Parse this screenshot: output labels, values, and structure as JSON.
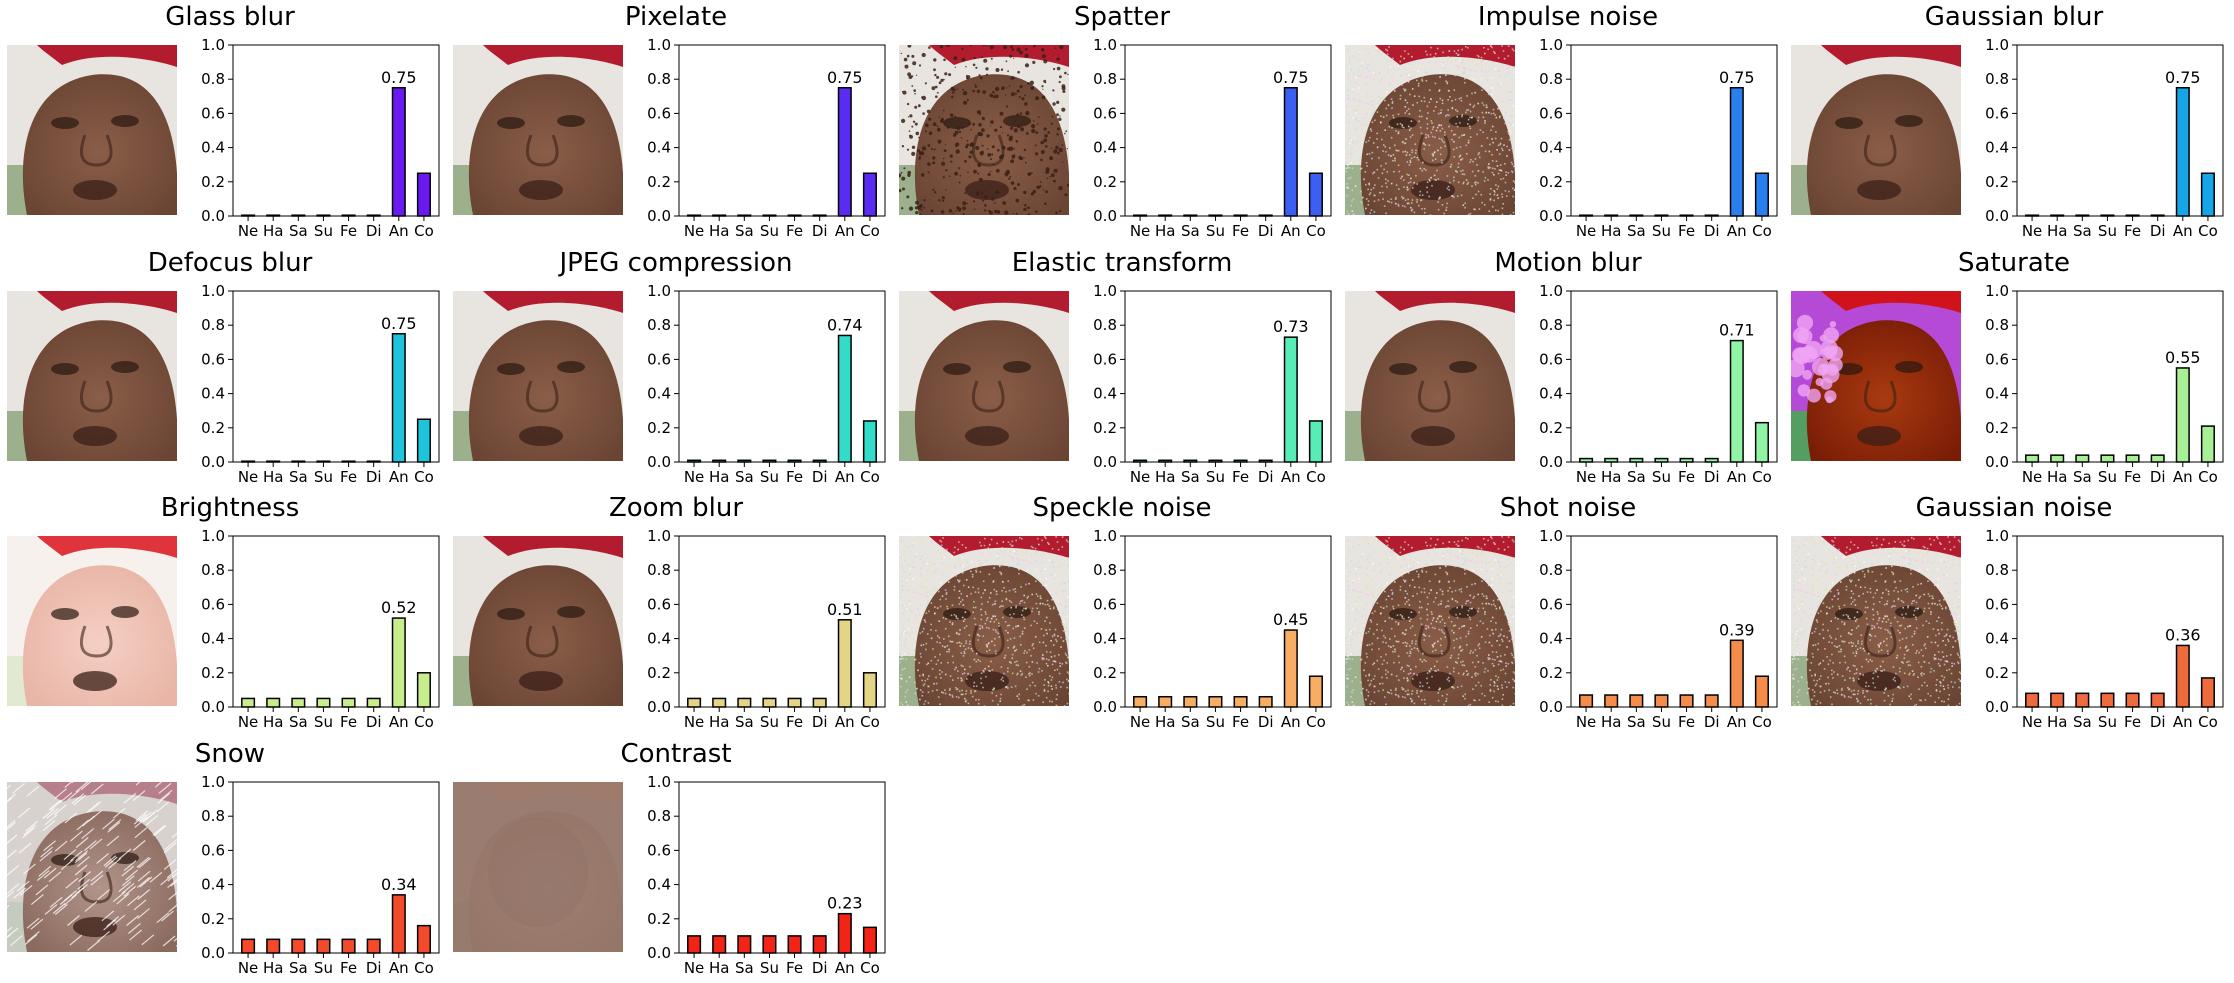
{
  "figure": {
    "category_labels": [
      "Ne",
      "Ha",
      "Sa",
      "Su",
      "Fe",
      "Di",
      "An",
      "Co"
    ],
    "y_ticks": [
      "0.0",
      "0.2",
      "0.4",
      "0.6",
      "0.8",
      "1.0"
    ],
    "ylim": [
      0,
      1.0
    ]
  },
  "chart_data": [
    {
      "type": "bar",
      "title": "Glass blur",
      "categories": [
        "Ne",
        "Ha",
        "Sa",
        "Su",
        "Fe",
        "Di",
        "An",
        "Co"
      ],
      "values": [
        0.0,
        0.0,
        0.0,
        0.0,
        0.0,
        0.0,
        0.75,
        0.25
      ],
      "annotation": "0.75",
      "color": "#6a1af0",
      "image": "red-cap-face-clean",
      "ylim": [
        0,
        1.0
      ]
    },
    {
      "type": "bar",
      "title": "Pixelate",
      "categories": [
        "Ne",
        "Ha",
        "Sa",
        "Su",
        "Fe",
        "Di",
        "An",
        "Co"
      ],
      "values": [
        0.0,
        0.0,
        0.0,
        0.0,
        0.0,
        0.0,
        0.75,
        0.25
      ],
      "annotation": "0.75",
      "color": "#5a2cf2",
      "image": "red-cap-face-clean",
      "ylim": [
        0,
        1.0
      ]
    },
    {
      "type": "bar",
      "title": "Spatter",
      "categories": [
        "Ne",
        "Ha",
        "Sa",
        "Su",
        "Fe",
        "Di",
        "An",
        "Co"
      ],
      "values": [
        0.0,
        0.0,
        0.0,
        0.0,
        0.0,
        0.0,
        0.75,
        0.25
      ],
      "annotation": "0.75",
      "color": "#3b5ff2",
      "image": "red-cap-face-spatter",
      "ylim": [
        0,
        1.0
      ]
    },
    {
      "type": "bar",
      "title": "Impulse noise",
      "categories": [
        "Ne",
        "Ha",
        "Sa",
        "Su",
        "Fe",
        "Di",
        "An",
        "Co"
      ],
      "values": [
        0.0,
        0.0,
        0.0,
        0.0,
        0.0,
        0.0,
        0.75,
        0.25
      ],
      "annotation": "0.75",
      "color": "#2a7fef",
      "image": "red-cap-face-noisy",
      "ylim": [
        0,
        1.0
      ]
    },
    {
      "type": "bar",
      "title": "Gaussian blur",
      "categories": [
        "Ne",
        "Ha",
        "Sa",
        "Su",
        "Fe",
        "Di",
        "An",
        "Co"
      ],
      "values": [
        0.0,
        0.0,
        0.0,
        0.0,
        0.0,
        0.0,
        0.75,
        0.25
      ],
      "annotation": "0.75",
      "color": "#16a5e6",
      "image": "red-cap-face-clean",
      "ylim": [
        0,
        1.0
      ]
    },
    {
      "type": "bar",
      "title": "Defocus blur",
      "categories": [
        "Ne",
        "Ha",
        "Sa",
        "Su",
        "Fe",
        "Di",
        "An",
        "Co"
      ],
      "values": [
        0.0,
        0.0,
        0.0,
        0.0,
        0.0,
        0.0,
        0.75,
        0.25
      ],
      "annotation": "0.75",
      "color": "#1ec4dc",
      "image": "red-cap-face-clean",
      "ylim": [
        0,
        1.0
      ]
    },
    {
      "type": "bar",
      "title": "JPEG compression",
      "categories": [
        "Ne",
        "Ha",
        "Sa",
        "Su",
        "Fe",
        "Di",
        "An",
        "Co"
      ],
      "values": [
        0.01,
        0.01,
        0.01,
        0.01,
        0.01,
        0.01,
        0.74,
        0.24
      ],
      "annotation": "0.74",
      "color": "#33dcc9",
      "image": "red-cap-face-clean",
      "ylim": [
        0,
        1.0
      ]
    },
    {
      "type": "bar",
      "title": "Elastic transform",
      "categories": [
        "Ne",
        "Ha",
        "Sa",
        "Su",
        "Fe",
        "Di",
        "An",
        "Co"
      ],
      "values": [
        0.01,
        0.01,
        0.01,
        0.01,
        0.01,
        0.01,
        0.73,
        0.24
      ],
      "annotation": "0.73",
      "color": "#58edb6",
      "image": "red-cap-face-clean",
      "ylim": [
        0,
        1.0
      ]
    },
    {
      "type": "bar",
      "title": "Motion blur",
      "categories": [
        "Ne",
        "Ha",
        "Sa",
        "Su",
        "Fe",
        "Di",
        "An",
        "Co"
      ],
      "values": [
        0.02,
        0.02,
        0.02,
        0.02,
        0.02,
        0.02,
        0.71,
        0.23
      ],
      "annotation": "0.71",
      "color": "#8ff5a5",
      "image": "red-cap-face-clean",
      "ylim": [
        0,
        1.0
      ]
    },
    {
      "type": "bar",
      "title": "Saturate",
      "categories": [
        "Ne",
        "Ha",
        "Sa",
        "Su",
        "Fe",
        "Di",
        "An",
        "Co"
      ],
      "values": [
        0.04,
        0.04,
        0.04,
        0.04,
        0.04,
        0.04,
        0.55,
        0.21
      ],
      "annotation": "0.55",
      "color": "#a7f095",
      "image": "red-cap-face-saturated",
      "ylim": [
        0,
        1.0
      ]
    },
    {
      "type": "bar",
      "title": "Brightness",
      "categories": [
        "Ne",
        "Ha",
        "Sa",
        "Su",
        "Fe",
        "Di",
        "An",
        "Co"
      ],
      "values": [
        0.05,
        0.05,
        0.05,
        0.05,
        0.05,
        0.05,
        0.52,
        0.2
      ],
      "annotation": "0.52",
      "color": "#c8ed8c",
      "image": "red-cap-face-bright",
      "ylim": [
        0,
        1.0
      ]
    },
    {
      "type": "bar",
      "title": "Zoom blur",
      "categories": [
        "Ne",
        "Ha",
        "Sa",
        "Su",
        "Fe",
        "Di",
        "An",
        "Co"
      ],
      "values": [
        0.05,
        0.05,
        0.05,
        0.05,
        0.05,
        0.05,
        0.51,
        0.2
      ],
      "annotation": "0.51",
      "color": "#e3d486",
      "image": "red-cap-face-clean",
      "ylim": [
        0,
        1.0
      ]
    },
    {
      "type": "bar",
      "title": "Speckle noise",
      "categories": [
        "Ne",
        "Ha",
        "Sa",
        "Su",
        "Fe",
        "Di",
        "An",
        "Co"
      ],
      "values": [
        0.06,
        0.06,
        0.06,
        0.06,
        0.06,
        0.06,
        0.45,
        0.18
      ],
      "annotation": "0.45",
      "color": "#f7ad63",
      "image": "red-cap-face-noisy",
      "ylim": [
        0,
        1.0
      ]
    },
    {
      "type": "bar",
      "title": "Shot noise",
      "categories": [
        "Ne",
        "Ha",
        "Sa",
        "Su",
        "Fe",
        "Di",
        "An",
        "Co"
      ],
      "values": [
        0.07,
        0.07,
        0.07,
        0.07,
        0.07,
        0.07,
        0.39,
        0.18
      ],
      "annotation": "0.39",
      "color": "#f48c4c",
      "image": "red-cap-face-noisy",
      "ylim": [
        0,
        1.0
      ]
    },
    {
      "type": "bar",
      "title": "Gaussian noise",
      "categories": [
        "Ne",
        "Ha",
        "Sa",
        "Su",
        "Fe",
        "Di",
        "An",
        "Co"
      ],
      "values": [
        0.08,
        0.08,
        0.08,
        0.08,
        0.08,
        0.08,
        0.36,
        0.17
      ],
      "annotation": "0.36",
      "color": "#ef6a3c",
      "image": "red-cap-face-noisy",
      "ylim": [
        0,
        1.0
      ]
    },
    {
      "type": "bar",
      "title": "Snow",
      "categories": [
        "Ne",
        "Ha",
        "Sa",
        "Su",
        "Fe",
        "Di",
        "An",
        "Co"
      ],
      "values": [
        0.08,
        0.08,
        0.08,
        0.08,
        0.08,
        0.08,
        0.34,
        0.16
      ],
      "annotation": "0.34",
      "color": "#f24a2a",
      "image": "red-cap-face-snow",
      "ylim": [
        0,
        1.0
      ]
    },
    {
      "type": "bar",
      "title": "Contrast",
      "categories": [
        "Ne",
        "Ha",
        "Sa",
        "Su",
        "Fe",
        "Di",
        "An",
        "Co"
      ],
      "values": [
        0.1,
        0.1,
        0.1,
        0.1,
        0.1,
        0.1,
        0.23,
        0.15
      ],
      "annotation": "0.23",
      "color": "#f22418",
      "image": "low-contrast-face",
      "ylim": [
        0,
        1.0
      ]
    }
  ]
}
